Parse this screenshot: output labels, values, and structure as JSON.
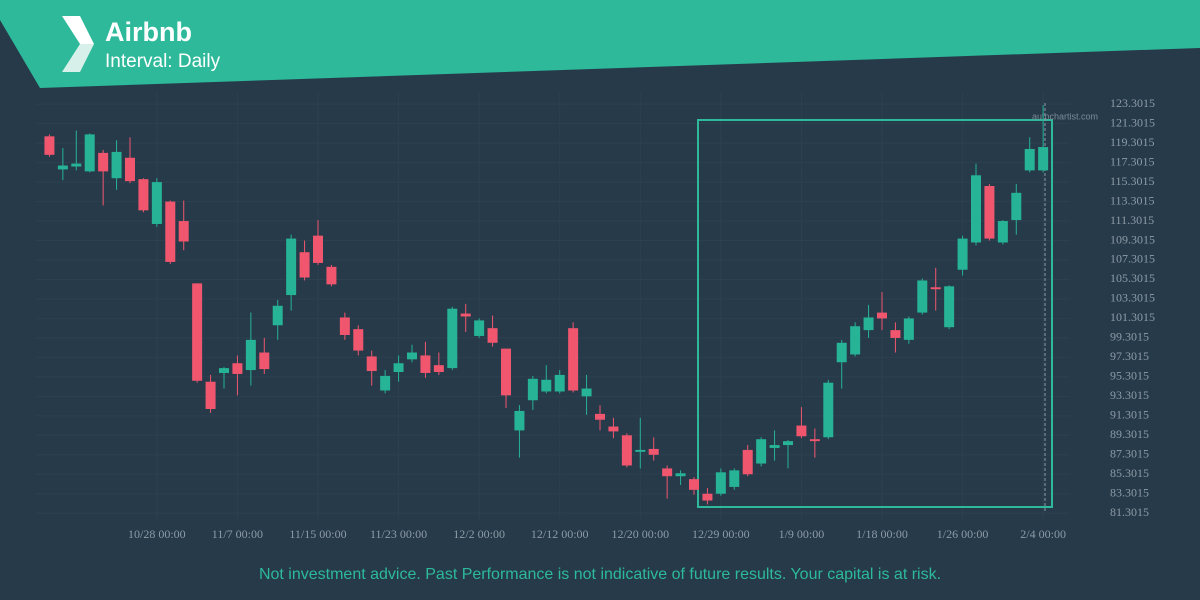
{
  "header": {
    "title": "Airbnb",
    "subtitle": "Interval: Daily"
  },
  "watermark": "autochartist.com",
  "footer": "Not investment advice. Past Performance is not indicative of future results. Your capital is at risk.",
  "chart_data": {
    "type": "candlestick",
    "up_color": "#26b396",
    "down_color": "#f0566e",
    "grid": true,
    "open": [
      120.0,
      116.6,
      116.9,
      116.4,
      118.3,
      115.7,
      117.8,
      115.6,
      111.0,
      113.3,
      111.3,
      104.9,
      94.8,
      95.7,
      96.7,
      96.0,
      97.8,
      100.6,
      103.7,
      108.1,
      109.8,
      106.6,
      101.4,
      100.2,
      97.4,
      93.9,
      95.8,
      97.1,
      97.5,
      96.5,
      96.2,
      101.8,
      99.5,
      100.3,
      98.2,
      89.8,
      92.9,
      93.8,
      93.8,
      100.3,
      93.3,
      91.5,
      90.2,
      89.3,
      87.6,
      87.9,
      85.9,
      85.1,
      84.8,
      83.3,
      83.3,
      84.0,
      87.8,
      86.4,
      88.0,
      88.3,
      90.3,
      88.9,
      89.1,
      96.8,
      97.6,
      100.1,
      101.9,
      100.1,
      99.1,
      101.9,
      104.5,
      100.4,
      106.3,
      109.1,
      114.9,
      109.1,
      111.4,
      116.5,
      116.5
    ],
    "high": [
      120.2,
      118.8,
      120.6,
      120.3,
      118.6,
      119.6,
      119.9,
      115.7,
      115.7,
      113.4,
      113.4,
      104.9,
      95.5,
      96.3,
      97.5,
      101.9,
      99.3,
      103.2,
      109.9,
      109.3,
      111.4,
      106.8,
      101.9,
      100.6,
      98.0,
      96.0,
      97.5,
      98.6,
      98.9,
      97.8,
      102.5,
      102.8,
      101.3,
      101.6,
      98.2,
      92.4,
      95.4,
      96.5,
      96.0,
      100.9,
      95.5,
      92.4,
      91.1,
      89.5,
      91.1,
      89.1,
      86.2,
      85.7,
      85.0,
      83.9,
      85.9,
      85.9,
      88.3,
      89.1,
      89.8,
      88.8,
      92.2,
      90.0,
      95.0,
      99.1,
      100.9,
      102.7,
      104.0,
      100.9,
      101.5,
      105.4,
      106.5,
      104.7,
      109.8,
      117.2,
      115.1,
      111.4,
      115.1,
      119.9,
      123.2
    ],
    "low": [
      117.9,
      115.5,
      116.5,
      116.3,
      112.9,
      114.5,
      115.2,
      112.2,
      110.7,
      106.9,
      108.3,
      94.7,
      91.6,
      94.1,
      93.4,
      94.4,
      95.6,
      99.1,
      102.1,
      105.2,
      106.8,
      104.6,
      99.1,
      97.5,
      94.4,
      93.6,
      94.8,
      96.8,
      95.2,
      95.5,
      96.0,
      99.9,
      99.3,
      98.4,
      92.1,
      87.0,
      91.9,
      93.6,
      93.6,
      93.7,
      91.4,
      89.8,
      89.0,
      86.0,
      85.9,
      86.7,
      82.8,
      84.2,
      83.2,
      82.2,
      83.1,
      83.7,
      85.1,
      86.1,
      86.7,
      85.9,
      89.0,
      87.0,
      88.9,
      94.1,
      97.4,
      99.3,
      100.1,
      97.8,
      98.7,
      101.7,
      102.1,
      100.2,
      105.7,
      108.8,
      109.3,
      108.9,
      109.9,
      116.3,
      116.3
    ],
    "close": [
      118.1,
      117.0,
      117.2,
      120.2,
      116.4,
      118.4,
      115.4,
      112.4,
      115.3,
      107.1,
      109.2,
      94.9,
      92.0,
      96.2,
      95.6,
      99.1,
      96.1,
      102.6,
      109.5,
      105.5,
      107.0,
      104.8,
      99.6,
      98.0,
      95.9,
      95.4,
      96.7,
      97.8,
      95.7,
      95.8,
      102.3,
      101.5,
      101.1,
      98.8,
      93.4,
      91.8,
      95.1,
      95.0,
      95.5,
      93.9,
      94.1,
      90.9,
      89.7,
      86.2,
      87.8,
      87.3,
      85.1,
      85.4,
      83.7,
      82.6,
      85.5,
      85.7,
      85.3,
      88.9,
      88.3,
      88.7,
      89.2,
      88.7,
      94.7,
      98.8,
      100.5,
      101.4,
      101.3,
      99.3,
      101.3,
      105.2,
      104.3,
      104.6,
      109.5,
      116.0,
      109.5,
      111.3,
      114.2,
      118.7,
      118.9
    ],
    "xlim": [
      -1,
      76
    ],
    "xticks": [
      {
        "value": 8,
        "label": "10/28 00:00"
      },
      {
        "value": 14,
        "label": "11/7 00:00"
      },
      {
        "value": 20,
        "label": "11/15 00:00"
      },
      {
        "value": 26,
        "label": "11/23 00:00"
      },
      {
        "value": 32,
        "label": "12/2 00:00"
      },
      {
        "value": 38,
        "label": "12/12 00:00"
      },
      {
        "value": 44,
        "label": "12/20 00:00"
      },
      {
        "value": 50,
        "label": "12/29 00:00"
      },
      {
        "value": 56,
        "label": "1/9 00:00"
      },
      {
        "value": 62,
        "label": "1/18 00:00"
      },
      {
        "value": 68,
        "label": "1/26 00:00"
      },
      {
        "value": 74,
        "label": "2/4 00:00"
      }
    ],
    "ylim": [
      80.5,
      124.5
    ],
    "yticks": [
      81.3015,
      83.3015,
      85.3015,
      87.3015,
      89.3015,
      91.3015,
      93.3015,
      95.3015,
      97.3015,
      99.3015,
      101.3015,
      103.3015,
      105.3015,
      107.3015,
      109.3015,
      111.3015,
      113.3015,
      115.3015,
      117.3015,
      119.3015,
      121.3015,
      123.3015
    ]
  }
}
